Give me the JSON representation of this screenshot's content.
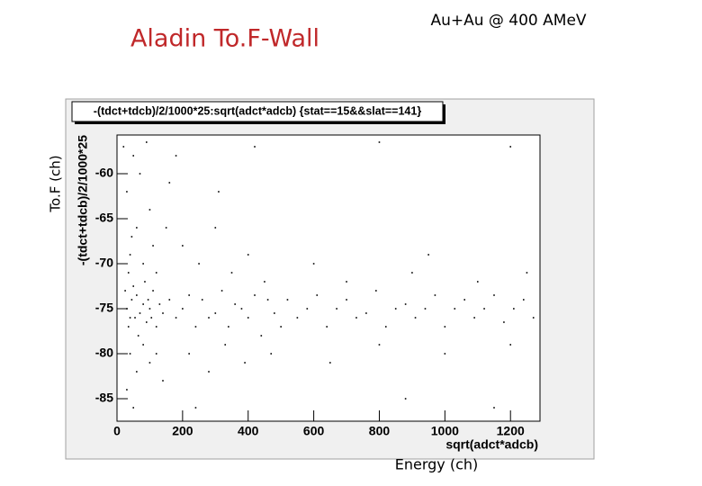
{
  "chart_data": {
    "type": "scatter",
    "title": "Aladin To.F-Wall",
    "subtitle": "Au+Au  @ 400 AMeV",
    "plot_title": "-(tdct+tdcb)/2/1000*25:sqrt(adct*adcb) {stat==15&&slat==141}",
    "x_axis_title": "sqrt(adct*adcb)",
    "y_axis_title": "-(tdct+tdcb)/2/1000*25",
    "xlabel": "Energy (ch)",
    "ylabel": "To.F (ch)",
    "color": "#000000",
    "xlim": [
      0,
      1290
    ],
    "ylim": [
      -87.5,
      -55.7
    ],
    "xticks": [
      0,
      200,
      400,
      600,
      800,
      1000,
      1200
    ],
    "yticks": [
      -85,
      -80,
      -75,
      -70,
      -65,
      -60
    ],
    "x": [
      30,
      45,
      55,
      60,
      70,
      80,
      90,
      100,
      110,
      120,
      35,
      50,
      65,
      85,
      95,
      105,
      130,
      140,
      25,
      40,
      30,
      50,
      60,
      40,
      80,
      100,
      20,
      110,
      70,
      150,
      90,
      120,
      45,
      160,
      35,
      40,
      60,
      80,
      100,
      30,
      50,
      120,
      140,
      160,
      180,
      200,
      220,
      240,
      260,
      280,
      300,
      320,
      340,
      360,
      380,
      400,
      420,
      440,
      460,
      480,
      500,
      200,
      250,
      300,
      350,
      400,
      450,
      220,
      280,
      330,
      390,
      470,
      240,
      310,
      180,
      420,
      520,
      550,
      580,
      610,
      640,
      670,
      700,
      730,
      760,
      790,
      820,
      850,
      880,
      910,
      940,
      970,
      1000,
      1030,
      1060,
      1090,
      1120,
      1150,
      1180,
      1210,
      1240,
      1270,
      600,
      700,
      800,
      900,
      1000,
      1100,
      1200,
      650,
      950,
      1250,
      1150,
      880,
      1200,
      800
    ],
    "values": [
      -75,
      -74,
      -76,
      -73.5,
      -75.5,
      -74.5,
      -76.5,
      -75,
      -73,
      -77,
      -77,
      -72.5,
      -78,
      -72,
      -74,
      -76,
      -74.5,
      -75.5,
      -73,
      -76,
      -62,
      -58,
      -66,
      -69,
      -70,
      -64,
      -57,
      -68,
      -60,
      -66,
      -56.5,
      -71,
      -67,
      -61,
      -71,
      -80,
      -82,
      -79,
      -81,
      -84,
      -86,
      -80,
      -83,
      -74,
      -76,
      -75,
      -73.5,
      -77,
      -74,
      -76,
      -75.5,
      -73,
      -77,
      -74.5,
      -75,
      -76,
      -73.5,
      -78,
      -74,
      -75.5,
      -77,
      -68,
      -70,
      -66,
      -71,
      -69,
      -72,
      -80,
      -82,
      -79,
      -81,
      -80,
      -86,
      -62,
      -58,
      -57,
      -74,
      -76,
      -75,
      -73.5,
      -77,
      -75,
      -74,
      -76,
      -75.5,
      -73,
      -77,
      -75,
      -74.5,
      -76,
      -75,
      -73.5,
      -77,
      -75,
      -74,
      -76,
      -75,
      -73.5,
      -76.5,
      -75,
      -74,
      -76,
      -70,
      -72,
      -79,
      -71,
      -80,
      -72,
      -79,
      -81,
      -69,
      -71,
      -86,
      -85,
      -57,
      -56.5
    ]
  }
}
